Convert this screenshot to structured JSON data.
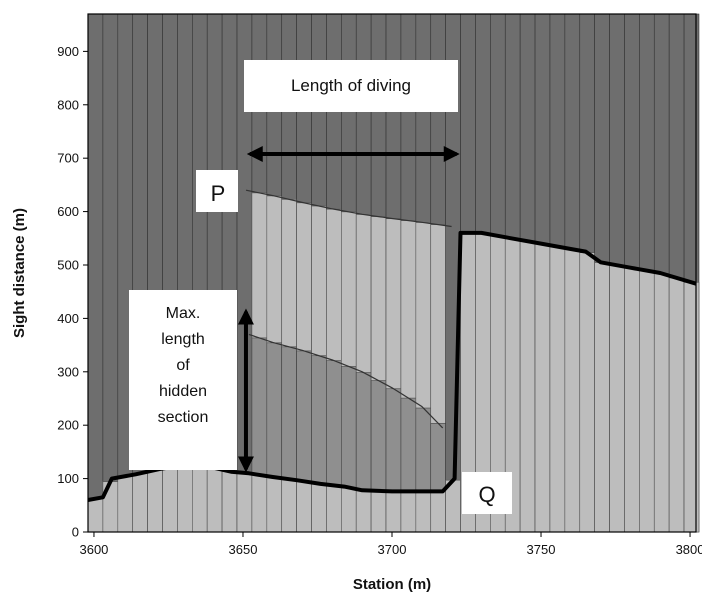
{
  "chart_data": {
    "type": "area",
    "xlabel": "Station (m)",
    "ylabel": "Sight distance (m)",
    "xlim": [
      3598,
      3802
    ],
    "ylim": [
      0,
      970
    ],
    "x_ticks": [
      3600,
      3650,
      3700,
      3750,
      3800
    ],
    "y_ticks": [
      0,
      100,
      200,
      300,
      400,
      500,
      600,
      700,
      800,
      900
    ],
    "grid": false,
    "background_color": "#7a7a7a",
    "bar_stripe_color_dark": "#6e6e6e",
    "bar_stripe_color_light": "#bdbdbd",
    "bar_stripe_color_medium": "#8f8f8f",
    "series": [
      {
        "values": [
          [
            3598,
            60
          ],
          [
            3603,
            65
          ],
          [
            3606,
            100
          ],
          [
            3614,
            108
          ],
          [
            3622,
            118
          ],
          [
            3630,
            125
          ],
          [
            3638,
            123
          ],
          [
            3646,
            113
          ],
          [
            3652,
            110
          ],
          [
            3660,
            103
          ],
          [
            3668,
            97
          ],
          [
            3676,
            90
          ],
          [
            3684,
            85
          ],
          [
            3690,
            78
          ],
          [
            3700,
            76
          ],
          [
            3710,
            76
          ],
          [
            3717,
            76
          ],
          [
            3721,
            100
          ],
          [
            3723,
            560
          ],
          [
            3730,
            560
          ],
          [
            3740,
            550
          ],
          [
            3750,
            540
          ],
          [
            3760,
            530
          ],
          [
            3765,
            525
          ],
          [
            3770,
            505
          ],
          [
            3780,
            495
          ],
          [
            3790,
            485
          ],
          [
            3802,
            465
          ]
        ]
      },
      {
        "values": [
          [
            3651,
            640
          ],
          [
            3660,
            630
          ],
          [
            3670,
            617
          ],
          [
            3680,
            605
          ],
          [
            3690,
            595
          ],
          [
            3700,
            587
          ],
          [
            3710,
            580
          ],
          [
            3720,
            572
          ]
        ]
      },
      {
        "values": [
          [
            3652,
            370
          ],
          [
            3660,
            355
          ],
          [
            3670,
            340
          ],
          [
            3680,
            322
          ],
          [
            3690,
            300
          ],
          [
            3700,
            270
          ],
          [
            3710,
            235
          ],
          [
            3717,
            195
          ]
        ]
      }
    ],
    "annotations": [
      {
        "text": "Length of diving"
      },
      {
        "text": "P"
      },
      {
        "text": "Q"
      },
      {
        "text": "Max.\nlength\nof\nhidden\nsection"
      }
    ],
    "diving_arrow_range": [
      3651,
      3723
    ],
    "hidden_arrow_range": [
      110,
      420
    ]
  }
}
